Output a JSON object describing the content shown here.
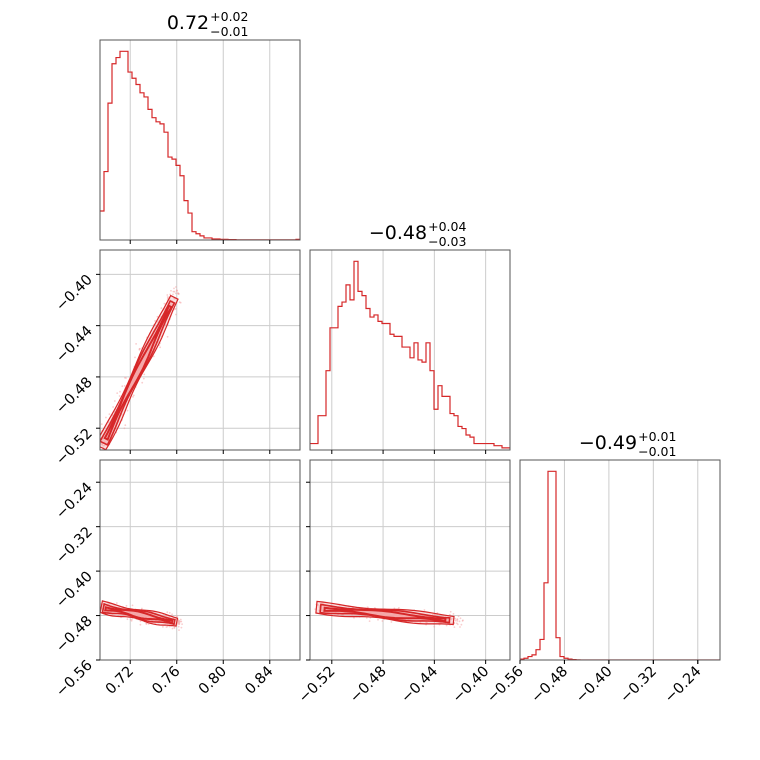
{
  "colors": {
    "series": "#d62728",
    "fill": "#f4a4a6",
    "grid": "#cccccc",
    "frame": "#555555"
  },
  "chart_data": {
    "type": "corner",
    "grid": true,
    "titles": [
      {
        "median": "0.72",
        "plus": "+0.02",
        "minus": "−0.01"
      },
      {
        "median": "−0.48",
        "plus": "+0.04",
        "minus": "−0.03"
      },
      {
        "median": "−0.49",
        "plus": "+0.01",
        "minus": "−0.01"
      }
    ],
    "params": [
      {
        "range": [
          0.694,
          0.866
        ],
        "ticks": [
          0.72,
          0.76,
          0.8,
          0.84
        ],
        "tick_labels": [
          "0.72",
          "0.76",
          "0.80",
          "0.84"
        ]
      },
      {
        "range": [
          -0.537,
          -0.381
        ],
        "ticks": [
          -0.52,
          -0.48,
          -0.44,
          -0.4
        ],
        "tick_labels": [
          "−0.52",
          "−0.48",
          "−0.44",
          "−0.40"
        ]
      },
      {
        "range": [
          -0.56,
          -0.2
        ],
        "ticks": [
          -0.56,
          -0.48,
          -0.4,
          -0.32,
          -0.24
        ],
        "tick_labels": [
          "−0.56",
          "−0.48",
          "−0.40",
          "−0.32",
          "−0.24"
        ]
      }
    ],
    "histograms": [
      {
        "x_start": 0.694,
        "bin_width": 0.00344,
        "counts": [
          14,
          33,
          66,
          85,
          88,
          91,
          91,
          81,
          78,
          75,
          71,
          69,
          63,
          59,
          57,
          56,
          52,
          40,
          39,
          36,
          31,
          19,
          13,
          4,
          3,
          2,
          1,
          1,
          0.5,
          0.5,
          0.3,
          0.3,
          0.2,
          0.2,
          0.1,
          0.1,
          0.1,
          0.1,
          0.1,
          0.1,
          0.1,
          0.1,
          0.1,
          0.1,
          0.1,
          0.1,
          0.1,
          0.1,
          0.1,
          0.3
        ]
      },
      {
        "x_start": -0.537,
        "bin_width": 0.00312,
        "counts": [
          3,
          3,
          16,
          16,
          37,
          57,
          57,
          67,
          69,
          77,
          70,
          88,
          74,
          72,
          66,
          62,
          63,
          60,
          59,
          59,
          54,
          53,
          53,
          48,
          48,
          43,
          50,
          42,
          41,
          50,
          37,
          19,
          30,
          25,
          25,
          17,
          16,
          11,
          10,
          7,
          6,
          3,
          3,
          3,
          3,
          3,
          2,
          2,
          1,
          1
        ]
      },
      {
        "x_start": -0.56,
        "bin_width": 0.0072,
        "counts": [
          0.5,
          1,
          2,
          3,
          6,
          12,
          45,
          110,
          110,
          13,
          2,
          1,
          0.5,
          0.2,
          0.1,
          0,
          0,
          0,
          0,
          0,
          0,
          0,
          0,
          0,
          0,
          0,
          0,
          0,
          0,
          0,
          0,
          0,
          0,
          0,
          0,
          0,
          0,
          0,
          0,
          0,
          0,
          0,
          0,
          0,
          0,
          0,
          0,
          0,
          0,
          0
        ]
      }
    ],
    "joint": [
      {
        "x": 0,
        "y": 1,
        "trend": {
          "x": [
            0.695,
            0.758
          ],
          "y": [
            -0.535,
            -0.418
          ]
        }
      },
      {
        "x": 0,
        "y": 2,
        "trend": {
          "x": [
            0.695,
            0.76
          ],
          "y": [
            -0.465,
            -0.492
          ]
        }
      },
      {
        "x": 1,
        "y": 2,
        "trend": {
          "x": [
            -0.532,
            -0.425
          ],
          "y": [
            -0.466,
            -0.489
          ]
        }
      }
    ]
  }
}
